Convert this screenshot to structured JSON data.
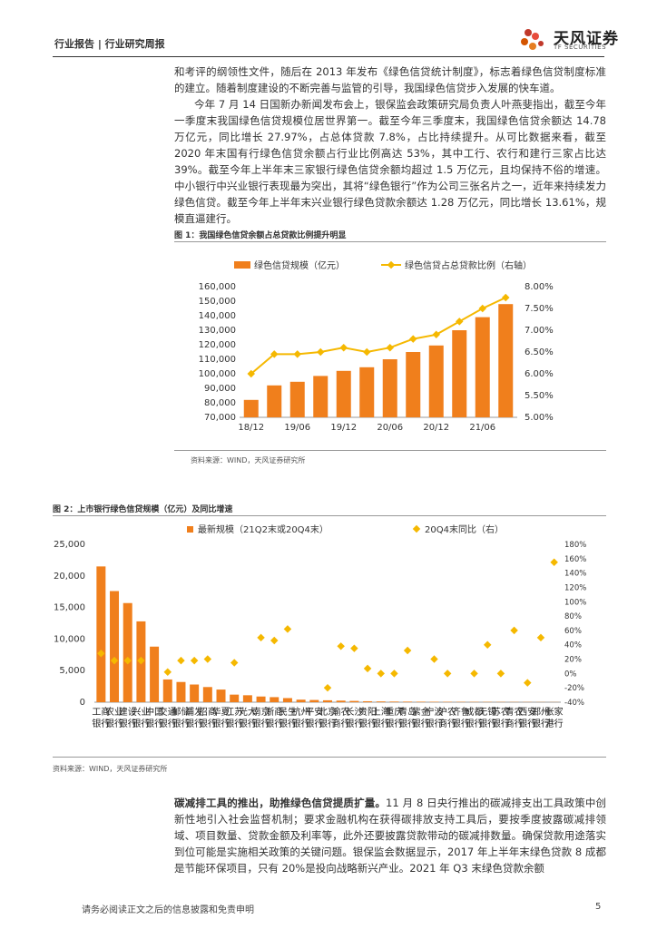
{
  "header": {
    "report_label": "行业报告 | 行业研究周报",
    "brand_name": "天风证券",
    "brand_sub": "TF SECURITIES"
  },
  "paragraph1": {
    "lines": [
      "和考评的纲领性文件，随后在 2013 年发布《绿色信贷统计制度》，标志着绿色信贷制度标准的建立。随着制度建设的不断完善与监管的引导，我国绿色信贷步入发展的快车道。",
      "今年 7 月 14 日国新办新闻发布会上，银保监会政策研究局负责人叶燕斐指出，截至今年一季度末我国绿色信贷规模位居世界第一。截至今年三季度末，我国绿色信贷余额达 14.78 万亿元，同比增长 27.97%，占总体贷款 7.8%，占比持续提升。从可比数据来看，截至 2020 年末国有行绿色信贷余额占行业比例高达 53%，其中工行、农行和建行三家占比达 39%。截至今年上半年末三家银行绿色信贷余额均超过 1.5 万亿元，且均保持不俗的增速。中小银行中兴业银行表现最为突出，其将“绿色银行”作为公司三张名片之一，近年来持续发力绿色信贷。截至今年上半年末兴业银行绿色贷款余额达 1.28 万亿元，同比增长 13.61%，规模直逼建行。"
    ]
  },
  "figure1": {
    "title": "图 1：我国绿色信贷余额占总贷款比例提升明显",
    "source": "资料来源：WIND，天风证券研究所"
  },
  "figure2": {
    "title": "图 2：上市银行绿色信贷规模（亿元）及同比增速",
    "source": "资料来源：WIND，天风证券研究所"
  },
  "paragraph2": {
    "bold": "碳减排工具的推出，助推绿色信贷提质扩量。",
    "rest": "11 月 8 日央行推出的碳减排支出工具政策中创新性地引入社会监督机制；要求金融机构在获得碳排放支持工具后，要按季度披露碳减排领域、项目数量、贷款金额及利率等，此外还要披露贷款带动的碳减排数量。确保贷款用途落实到位可能是实施相关政策的关键问题。银保监会数据显示，2017 年上半年末绿色贷款 8 成都是节能环保项目，只有 20%是投向战略新兴产业。2021 年 Q3 末绿色贷款余额"
  },
  "footer": {
    "disclaimer": "请务必阅读正文之后的信息披露和免责申明",
    "page": "5"
  },
  "colors": {
    "bar": "#f07f1c",
    "line": "#f5b800",
    "diamond": "#f5b800"
  },
  "chart_data": [
    {
      "type": "bar",
      "title": "图 1：我国绿色信贷余额占总贷款比例提升明显",
      "legend": [
        "绿色信贷规模（亿元）",
        "绿色信贷占总贷款比例（右轴）"
      ],
      "categories": [
        "18/12",
        "19/03",
        "19/06",
        "19/09",
        "19/12",
        "20/03",
        "20/06",
        "20/09",
        "20/12",
        "21/03",
        "21/06",
        "21/09"
      ],
      "xtick_labels": [
        "18/12",
        "19/06",
        "19/12",
        "20/06",
        "20/12",
        "21/06"
      ],
      "series": [
        {
          "name": "绿色信贷规模（亿元）",
          "type": "bar",
          "axis": "left",
          "values": [
            82000,
            92000,
            94500,
            98500,
            102000,
            104500,
            110000,
            115000,
            119500,
            130000,
            139000,
            148000
          ]
        },
        {
          "name": "绿色信贷占总贷款比例（右轴）",
          "type": "line",
          "axis": "right",
          "values": [
            6.0,
            6.45,
            6.45,
            6.5,
            6.6,
            6.5,
            6.6,
            6.8,
            6.9,
            7.2,
            7.5,
            7.75
          ]
        }
      ],
      "ylim_left": [
        70000,
        160000
      ],
      "yticks_left": [
        "70,000",
        "80,000",
        "90,000",
        "100,000",
        "110,000",
        "120,000",
        "130,000",
        "140,000",
        "150,000",
        "160,000"
      ],
      "ylim_right": [
        5.0,
        8.0
      ],
      "yticks_right": [
        "5.00%",
        "5.50%",
        "6.00%",
        "6.50%",
        "7.00%",
        "7.50%",
        "8.00%"
      ]
    },
    {
      "type": "bar",
      "title": "图 2：上市银行绿色信贷规模（亿元）及同比增速",
      "legend": [
        "最新规模（21Q2末或20Q4末）",
        "20Q4末同比（右）"
      ],
      "categories": [
        "工商银行",
        "农业银行",
        "建设银行",
        "兴业银行",
        "中国银行",
        "交通银行",
        "邮储银行",
        "浦发银行",
        "招商银行",
        "华夏银行",
        "江苏银行",
        "光大银行",
        "南京银行",
        "浙商银行",
        "民生银行",
        "杭州银行",
        "平安银行",
        "北京银行",
        "渝农商行",
        "长沙银行",
        "贵阳银行",
        "上海银行",
        "重庆银行",
        "青岛银行",
        "紫金银行",
        "宁波银行",
        "沪农商行",
        "齐鲁银行",
        "成都银行",
        "无锡银行",
        "苏农银行",
        "青农商行",
        "西安银行",
        "郑州银行",
        "张家港行"
      ],
      "series": [
        {
          "name": "最新规模（21Q2末或20Q4末）",
          "type": "bar",
          "axis": "left",
          "values": [
            21500,
            17600,
            15700,
            12800,
            8800,
            3600,
            3200,
            2800,
            2400,
            2000,
            1200,
            1100,
            900,
            800,
            650,
            400,
            350,
            300,
            250,
            200,
            150,
            120,
            100,
            90,
            80,
            70,
            60,
            55,
            50,
            45,
            40,
            35,
            30,
            25,
            20
          ]
        },
        {
          "name": "20Q4末同比（右）",
          "type": "scatter",
          "axis": "right",
          "values": [
            28,
            18,
            18,
            18,
            null,
            2,
            18,
            18,
            20,
            null,
            15,
            null,
            50,
            46,
            62,
            null,
            null,
            -20,
            38,
            35,
            7,
            0,
            0,
            32,
            null,
            20,
            0,
            null,
            0,
            40,
            0,
            60,
            -13,
            50,
            155
          ]
        }
      ],
      "ylim_left": [
        0,
        25000
      ],
      "yticks_left": [
        "0",
        "5,000",
        "10,000",
        "15,000",
        "20,000",
        "25,000"
      ],
      "ylim_right": [
        -40,
        180
      ],
      "yticks_right": [
        "-40%",
        "-20%",
        "0%",
        "20%",
        "40%",
        "60%",
        "80%",
        "100%",
        "120%",
        "140%",
        "160%",
        "180%"
      ]
    }
  ]
}
